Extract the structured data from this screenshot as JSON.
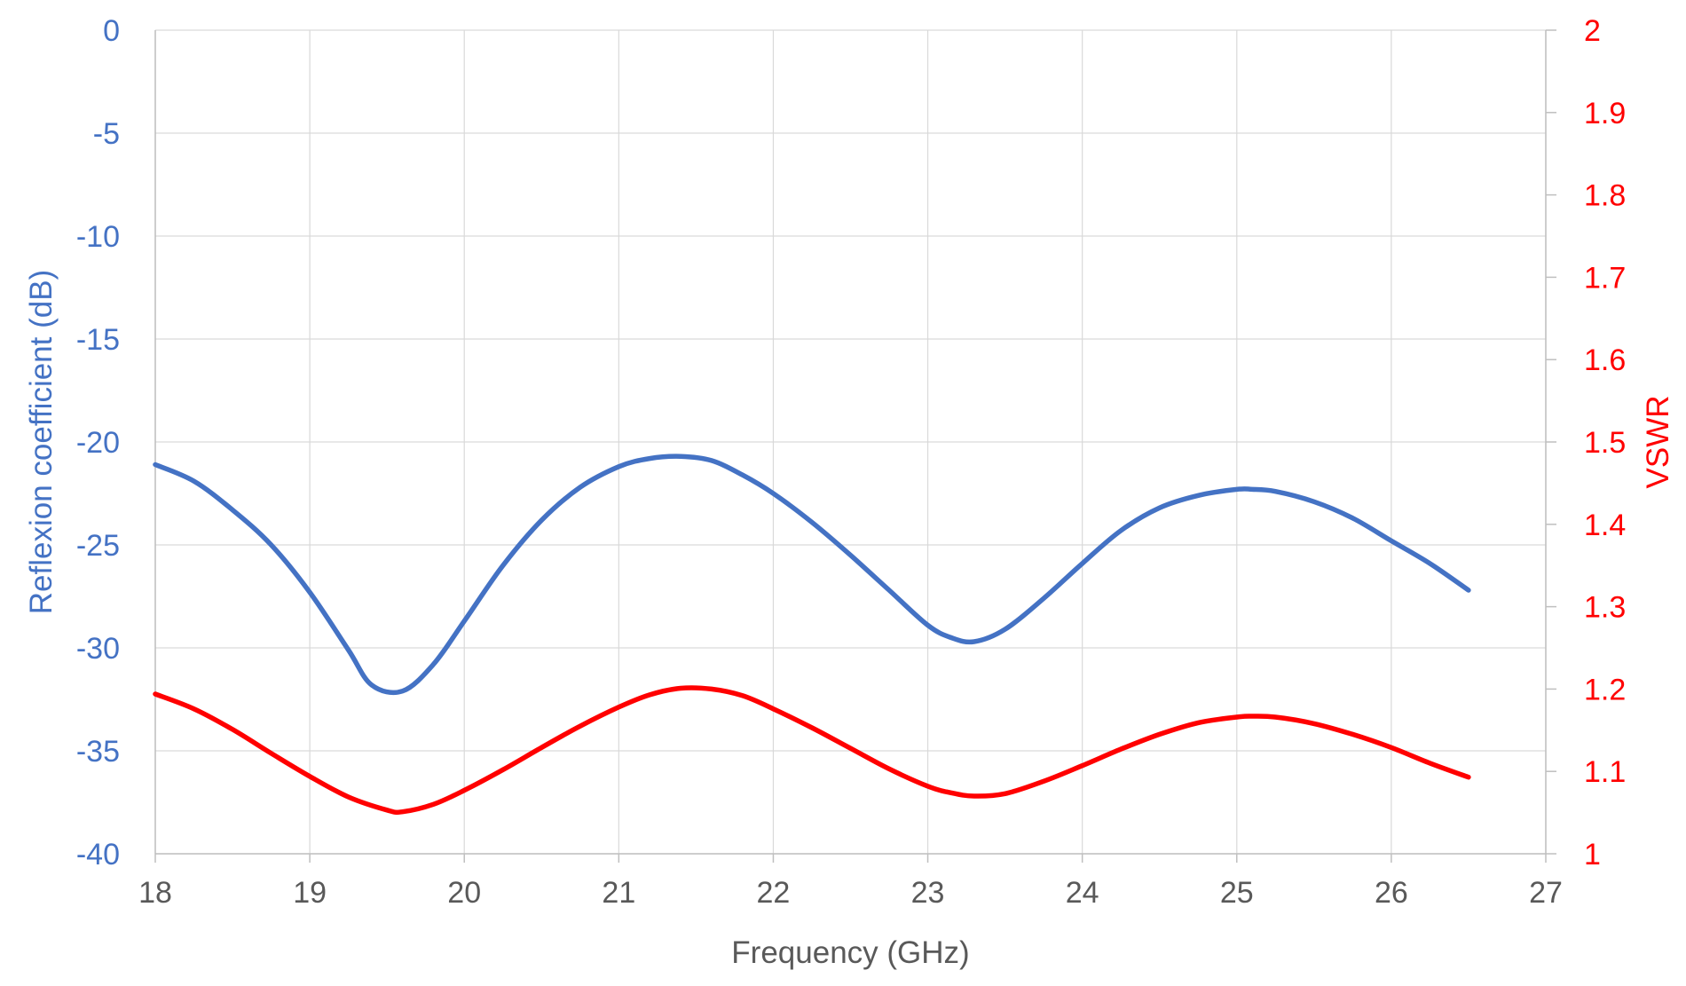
{
  "chart_data": {
    "type": "line",
    "x_axis": {
      "label": "Frequency (GHz)",
      "range": [
        18,
        27
      ],
      "ticks": [
        18,
        19,
        20,
        21,
        22,
        23,
        24,
        25,
        26,
        27
      ],
      "tick_labels": [
        "18",
        "19",
        "20",
        "21",
        "22",
        "23",
        "24",
        "25",
        "26",
        "27"
      ],
      "color": "#595959"
    },
    "y_axis_left": {
      "label": "Reflexion coefficient (dB)",
      "range": [
        -40,
        0
      ],
      "ticks": [
        0,
        -5,
        -10,
        -15,
        -20,
        -25,
        -30,
        -35,
        -40
      ],
      "tick_labels": [
        "0",
        "-5",
        "-10",
        "-15",
        "-20",
        "-25",
        "-30",
        "-35",
        "-40"
      ],
      "color": "#4472C4"
    },
    "y_axis_right": {
      "label": "VSWR",
      "range": [
        1,
        2
      ],
      "ticks": [
        1,
        1.1,
        1.2,
        1.3,
        1.4,
        1.5,
        1.6,
        1.7,
        1.8,
        1.9,
        2
      ],
      "tick_labels": [
        "1",
        "1.1",
        "1.2",
        "1.3",
        "1.4",
        "1.5",
        "1.6",
        "1.7",
        "1.8",
        "1.9",
        "2"
      ],
      "color": "#FF0000"
    },
    "grid": true,
    "legend": "none",
    "series": [
      {
        "axis": "left",
        "color": "#4472C4",
        "x": [
          18,
          18.25,
          18.5,
          18.75,
          19,
          19.25,
          19.4,
          19.6,
          19.8,
          20,
          20.25,
          20.5,
          20.75,
          21,
          21.2,
          21.4,
          21.6,
          21.8,
          22,
          22.25,
          22.5,
          22.75,
          23,
          23.15,
          23.3,
          23.5,
          23.75,
          24,
          24.25,
          24.5,
          24.75,
          25,
          25.1,
          25.25,
          25.5,
          25.75,
          26,
          26.25,
          26.5
        ],
        "y": [
          -21.1,
          -21.9,
          -23.3,
          -25.0,
          -27.3,
          -30.1,
          -31.8,
          -32.1,
          -30.8,
          -28.7,
          -26.0,
          -23.8,
          -22.2,
          -21.2,
          -20.8,
          -20.7,
          -20.9,
          -21.6,
          -22.5,
          -23.9,
          -25.5,
          -27.2,
          -28.9,
          -29.5,
          -29.7,
          -29.1,
          -27.6,
          -25.9,
          -24.3,
          -23.2,
          -22.6,
          -22.3,
          -22.3,
          -22.4,
          -22.9,
          -23.7,
          -24.8,
          -25.9,
          -27.2
        ]
      },
      {
        "axis": "right",
        "color": "#FF0000",
        "x": [
          18,
          18.25,
          18.5,
          18.75,
          19,
          19.25,
          19.5,
          19.6,
          19.8,
          20,
          20.25,
          20.5,
          20.75,
          21,
          21.2,
          21.4,
          21.6,
          21.8,
          22,
          22.25,
          22.5,
          22.75,
          23,
          23.15,
          23.3,
          23.5,
          23.75,
          24,
          24.25,
          24.5,
          24.75,
          25,
          25.1,
          25.25,
          25.5,
          25.75,
          26,
          26.25,
          26.5
        ],
        "y": [
          1.194,
          1.176,
          1.151,
          1.122,
          1.094,
          1.069,
          1.053,
          1.051,
          1.06,
          1.077,
          1.102,
          1.129,
          1.155,
          1.178,
          1.193,
          1.201,
          1.2,
          1.192,
          1.176,
          1.153,
          1.128,
          1.103,
          1.082,
          1.074,
          1.07,
          1.073,
          1.088,
          1.107,
          1.127,
          1.145,
          1.159,
          1.166,
          1.167,
          1.166,
          1.158,
          1.145,
          1.129,
          1.11,
          1.093
        ]
      }
    ]
  }
}
